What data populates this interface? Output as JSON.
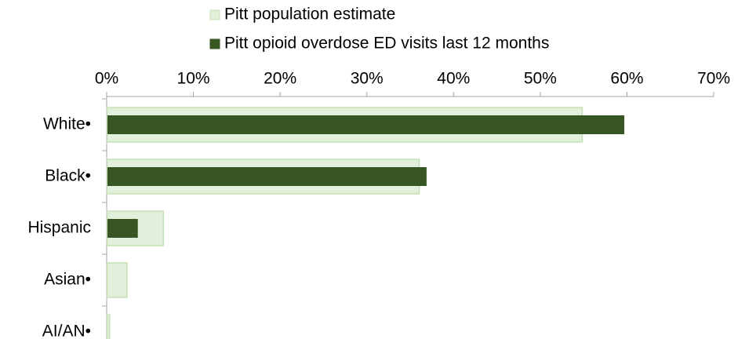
{
  "chart_data": {
    "type": "bar",
    "orientation": "horizontal",
    "categories": [
      "White•",
      "Black•",
      "Hispanic",
      "Asian•",
      "AI/AN•"
    ],
    "series": [
      {
        "name": "Pitt population estimate",
        "values": [
          54.8,
          36.0,
          6.5,
          2.3,
          0.3
        ],
        "color": "#e2efda",
        "border_color": "#c5e0b3"
      },
      {
        "name": "Pitt opioid overdose ED visits last 12 months",
        "values": [
          59.6,
          36.8,
          3.5,
          0,
          0
        ],
        "color": "#375623"
      }
    ],
    "xlim": [
      0,
      70
    ],
    "x_tick_values": [
      0,
      10,
      20,
      30,
      40,
      50,
      60,
      70
    ],
    "x_tick_labels": [
      "0%",
      "10%",
      "20%",
      "30%",
      "40%",
      "50%",
      "60%",
      "70%"
    ],
    "axis_position": "top",
    "grid": false,
    "legend_position": "top"
  }
}
